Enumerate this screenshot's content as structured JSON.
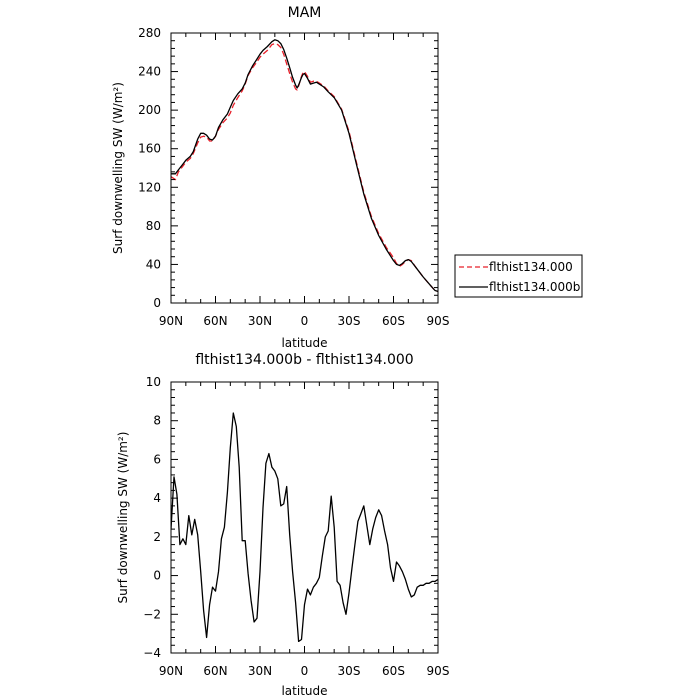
{
  "chart_data": [
    {
      "type": "line",
      "title": "MAM",
      "xlabel": "latitude",
      "ylabel": "Surf downwelling SW (W/m²)",
      "xlim": [
        90,
        -90
      ],
      "ylim": [
        0,
        280
      ],
      "x_ticks": [
        90,
        60,
        30,
        0,
        -30,
        -60,
        -90
      ],
      "x_tick_labels": [
        "90N",
        "60N",
        "30N",
        "0",
        "30S",
        "60S",
        "90S"
      ],
      "y_ticks": [
        0,
        40,
        80,
        120,
        160,
        200,
        240,
        280
      ],
      "y_tick_labels": [
        "0",
        "40",
        "80",
        "120",
        "160",
        "200",
        "240",
        "280"
      ],
      "legend": {
        "placement": "right",
        "entries": [
          "flthist134.000",
          "flthist134.000b"
        ]
      },
      "series": [
        {
          "name": "flthist134.000",
          "color": "#e8202a",
          "dash": "dashed",
          "x": [
            90,
            87,
            85,
            82,
            80,
            77,
            75,
            72,
            70,
            68,
            66,
            64,
            62,
            60,
            58,
            55,
            52,
            50,
            48,
            45,
            42,
            40,
            38,
            35,
            32,
            30,
            28,
            25,
            22,
            20,
            18,
            16,
            14,
            12,
            10,
            8,
            6,
            5,
            4,
            3,
            2,
            1,
            0,
            -2,
            -4,
            -6,
            -8,
            -10,
            -13,
            -16,
            -20,
            -25,
            -30,
            -35,
            -40,
            -45,
            -50,
            -55,
            -60,
            -62,
            -64,
            -66,
            -68,
            -70,
            -72,
            -75,
            -80,
            -85,
            -88,
            -90
          ],
          "y": [
            131,
            128,
            136,
            142,
            146,
            150,
            155,
            166,
            172,
            173,
            172,
            168,
            168,
            173,
            180,
            187,
            192,
            197,
            205,
            213,
            220,
            227,
            236,
            244,
            250,
            255,
            258,
            262,
            268,
            269,
            268,
            265,
            258,
            248,
            238,
            229,
            222,
            221,
            225,
            230,
            235,
            239,
            240,
            235,
            229,
            230,
            230,
            228,
            225,
            220,
            214,
            201,
            178,
            146,
            115,
            90,
            72,
            58,
            47,
            41,
            38,
            40,
            43,
            45,
            44,
            37,
            27,
            18,
            13,
            12
          ]
        },
        {
          "name": "flthist134.000b",
          "color": "#000000",
          "dash": "solid",
          "x": [
            90,
            87,
            85,
            82,
            80,
            77,
            75,
            72,
            70,
            68,
            66,
            64,
            62,
            60,
            58,
            55,
            52,
            50,
            48,
            45,
            42,
            40,
            38,
            35,
            32,
            30,
            28,
            25,
            22,
            20,
            18,
            16,
            14,
            12,
            10,
            8,
            6,
            5,
            4,
            3,
            2,
            1,
            0,
            -2,
            -4,
            -6,
            -8,
            -10,
            -13,
            -16,
            -20,
            -25,
            -30,
            -35,
            -40,
            -45,
            -50,
            -55,
            -60,
            -62,
            -64,
            -66,
            -68,
            -70,
            -72,
            -75,
            -80,
            -85,
            -88,
            -90
          ],
          "y": [
            134,
            134,
            138,
            144,
            148,
            152,
            157,
            170,
            176,
            176,
            174,
            170,
            169,
            173,
            182,
            190,
            196,
            203,
            210,
            217,
            222,
            228,
            237,
            246,
            253,
            258,
            262,
            266,
            271,
            273,
            272,
            269,
            263,
            254,
            244,
            234,
            226,
            223,
            226,
            230,
            234,
            237,
            238,
            233,
            227,
            228,
            229,
            227,
            224,
            219,
            213,
            200,
            176,
            144,
            113,
            88,
            70,
            56,
            44,
            40,
            39,
            41,
            44,
            45,
            43,
            37,
            27,
            18,
            13,
            12
          ]
        }
      ]
    },
    {
      "type": "line",
      "title": "flthist134.000b - flthist134.000",
      "xlabel": "latitude",
      "ylabel": "Surf downwelling SW (W/m²)",
      "xlim": [
        90,
        -90
      ],
      "ylim": [
        -4,
        10
      ],
      "x_ticks": [
        90,
        60,
        30,
        0,
        -30,
        -60,
        -90
      ],
      "x_tick_labels": [
        "90N",
        "60N",
        "30N",
        "0",
        "30S",
        "60S",
        "90S"
      ],
      "y_ticks": [
        -4,
        -2,
        0,
        2,
        4,
        6,
        8,
        10
      ],
      "y_tick_labels": [
        "−4",
        "−2",
        "0",
        "2",
        "4",
        "6",
        "8",
        "10"
      ],
      "series": [
        {
          "color": "#000000",
          "dash": "solid",
          "x": [
            90,
            88,
            86,
            84,
            82,
            80,
            78,
            76,
            74,
            72,
            70,
            68,
            66,
            64,
            62,
            60,
            58,
            56,
            54,
            52,
            50,
            48,
            46,
            44,
            42,
            40,
            38,
            36,
            34,
            32,
            30,
            28,
            26,
            24,
            22,
            20,
            18,
            16,
            14,
            12,
            10,
            8,
            6,
            4,
            2,
            0,
            -2,
            -4,
            -6,
            -8,
            -10,
            -12,
            -14,
            -16,
            -18,
            -20,
            -22,
            -24,
            -26,
            -28,
            -30,
            -32,
            -34,
            -36,
            -38,
            -40,
            -42,
            -44,
            -46,
            -48,
            -50,
            -52,
            -54,
            -56,
            -58,
            -60,
            -62,
            -64,
            -66,
            -68,
            -70,
            -72,
            -74,
            -76,
            -78,
            -80,
            -82,
            -84,
            -86,
            -88,
            -90
          ],
          "y": [
            2.4,
            5.1,
            4.2,
            1.6,
            1.9,
            1.6,
            3.1,
            2.1,
            2.9,
            2.1,
            0.2,
            -1.8,
            -3.2,
            -1.5,
            -0.6,
            -0.8,
            0.2,
            1.9,
            2.5,
            4.3,
            6.6,
            8.4,
            7.7,
            5.6,
            1.8,
            1.8,
            0.1,
            -1.3,
            -2.4,
            -2.2,
            0.2,
            3.5,
            5.8,
            6.3,
            5.6,
            5.4,
            5.0,
            3.6,
            3.7,
            4.6,
            2.1,
            0.2,
            -1.4,
            -3.4,
            -3.3,
            -1.5,
            -0.7,
            -1.0,
            -0.6,
            -0.4,
            -0.1,
            1.0,
            2.0,
            2.3,
            4.1,
            2.5,
            -0.3,
            -0.5,
            -1.4,
            -2.0,
            -0.9,
            0.4,
            1.6,
            2.8,
            3.2,
            3.6,
            2.6,
            1.6,
            2.4,
            3.0,
            3.4,
            3.1,
            2.3,
            1.6,
            0.4,
            -0.3,
            0.7,
            0.5,
            0.2,
            -0.2,
            -0.7,
            -1.1,
            -1.0,
            -0.6,
            -0.5,
            -0.5,
            -0.4,
            -0.4,
            -0.3,
            -0.3,
            -0.2
          ]
        }
      ]
    }
  ]
}
